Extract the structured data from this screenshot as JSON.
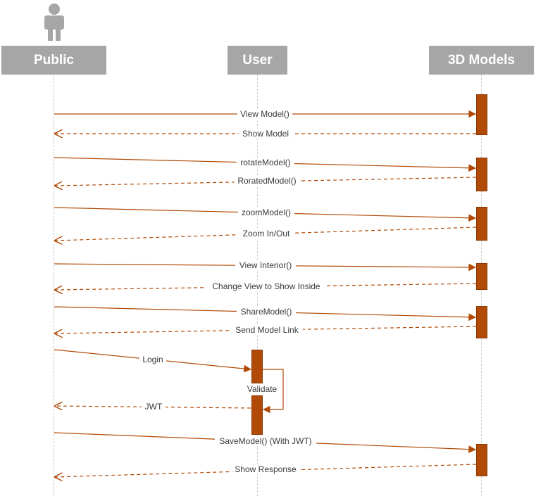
{
  "participants": [
    {
      "id": "public",
      "label": "Public",
      "icon": "person-icon"
    },
    {
      "id": "user",
      "label": "User"
    },
    {
      "id": "models",
      "label": "3D Models"
    }
  ],
  "messages": [
    {
      "from": "public",
      "to": "models",
      "label": "View Model()",
      "kind": "call"
    },
    {
      "from": "models",
      "to": "public",
      "label": "Show Model",
      "kind": "return"
    },
    {
      "from": "public",
      "to": "models",
      "label": "rotateModel()",
      "kind": "call"
    },
    {
      "from": "models",
      "to": "public",
      "label": "RoratedModel()",
      "kind": "return"
    },
    {
      "from": "public",
      "to": "models",
      "label": "zoomModel()",
      "kind": "call"
    },
    {
      "from": "models",
      "to": "public",
      "label": "Zoom In/Out",
      "kind": "return"
    },
    {
      "from": "public",
      "to": "models",
      "label": "View Interior()",
      "kind": "call"
    },
    {
      "from": "models",
      "to": "public",
      "label": "Change View to Show Inside",
      "kind": "return"
    },
    {
      "from": "public",
      "to": "models",
      "label": "ShareModel()",
      "kind": "call"
    },
    {
      "from": "models",
      "to": "public",
      "label": "Send Model Link",
      "kind": "return"
    },
    {
      "from": "public",
      "to": "user",
      "label": "Login",
      "kind": "call"
    },
    {
      "from": "user",
      "to": "user",
      "label": "Validate",
      "kind": "self"
    },
    {
      "from": "user",
      "to": "public",
      "label": "JWT",
      "kind": "return"
    },
    {
      "from": "public",
      "to": "models",
      "label": "SaveModel() (With JWT)",
      "kind": "call"
    },
    {
      "from": "models",
      "to": "public",
      "label": "Show Response",
      "kind": "return"
    }
  ],
  "colors": {
    "header": "#a6a6a6",
    "activation": "#b14a06",
    "arrow": "#b14a06",
    "lifeline": "#c9c9c9",
    "actor_icon": "#a6a6a6"
  }
}
